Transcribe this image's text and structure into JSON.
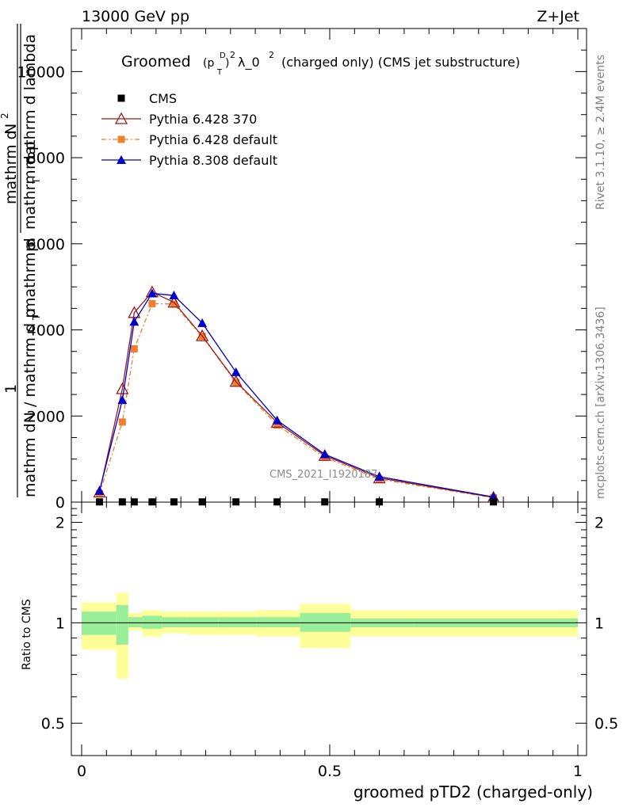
{
  "header": {
    "left": "13000 GeV pp",
    "right": "Z+Jet"
  },
  "title": {
    "main": "Groomed",
    "sup_d": "D",
    "sub_t": "T",
    "p": "(p",
    "close": ")",
    "exp2": "2",
    "lambda": "λ_0",
    "exp2b": "2",
    "rest": "(charged only) (CMS jet substructure)"
  },
  "side_labels": {
    "rivet": "Rivet 3.1.10, ≥ 2.4M events",
    "mcplots": "mcplots.cern.ch [arXiv:1306.3436]",
    "watermark": "CMS_2021_I1920187"
  },
  "ylabel_main": {
    "numerator_1": "mathrm d",
    "numerator_2": "N",
    "numerator_sup": "2",
    "denominator_a": "mathrm d p",
    "denominator_a_sub": "T",
    "denominator_b": "mathrm d lambda",
    "prefix_one": "1",
    "prefix_text": "mathrm dN / mathrm d p",
    "prefix_sub": "T",
    "prefix_tail": "mathrm d",
    "prefix_tail2": "p",
    "prefix_tail2_sub": "T"
  },
  "ratio_ylabel": "Ratio to CMS",
  "xlabel": "groomed pTD2 (charged-only)",
  "chart_data": [
    {
      "type": "line",
      "xlim": [
        0,
        1
      ],
      "ylim": [
        0,
        11000
      ],
      "xticks": [
        0,
        0.5,
        1
      ],
      "xtick_labels": [
        "0",
        "0.5",
        "1"
      ],
      "yticks": [
        0,
        2000,
        4000,
        6000,
        8000,
        10000
      ],
      "ytick_labels": [
        "0",
        "2000",
        "4000",
        "6000",
        "8000",
        "10000"
      ],
      "legend_position": "top-left",
      "series": [
        {
          "name": "CMS",
          "color": "#000000",
          "marker": "square",
          "x": [
            0.036,
            0.082,
            0.106,
            0.142,
            0.186,
            0.243,
            0.311,
            0.394,
            0.49,
            0.6,
            0.83
          ],
          "y": [
            5,
            5,
            5,
            5,
            5,
            5,
            5,
            5,
            5,
            5,
            5
          ]
        },
        {
          "name": "Pythia 6.428 370",
          "color": "#9a1a1a",
          "marker": "open-triangle",
          "x": [
            0.036,
            0.082,
            0.106,
            0.142,
            0.186,
            0.243,
            0.311,
            0.394,
            0.49,
            0.6,
            0.83
          ],
          "y": [
            230,
            2630,
            4400,
            4880,
            4640,
            3860,
            2800,
            1850,
            1080,
            560,
            110
          ]
        },
        {
          "name": "Pythia 6.428 default",
          "color": "#f08030",
          "marker": "square",
          "x": [
            0.036,
            0.082,
            0.106,
            0.142,
            0.186,
            0.243,
            0.311,
            0.394,
            0.49,
            0.6,
            0.83
          ],
          "y": [
            200,
            1860,
            3560,
            4610,
            4600,
            3850,
            2780,
            1790,
            1040,
            530,
            100
          ]
        },
        {
          "name": "Pythia 8.308 default",
          "color": "#0000cc",
          "marker": "triangle",
          "x": [
            0.036,
            0.082,
            0.106,
            0.142,
            0.186,
            0.243,
            0.311,
            0.394,
            0.49,
            0.6,
            0.83
          ],
          "y": [
            260,
            2370,
            4190,
            4850,
            4800,
            4160,
            3020,
            1900,
            1110,
            590,
            120
          ]
        }
      ]
    },
    {
      "type": "area",
      "ylabel": "Ratio to CMS",
      "xlim": [
        0,
        1
      ],
      "ylim": [
        0.4,
        2.3
      ],
      "yticks": [
        0.5,
        1,
        2
      ],
      "ytick_labels": [
        "0.5",
        "1",
        "2"
      ],
      "xticks": [
        0,
        0.5,
        1
      ],
      "xtick_labels": [
        "0",
        "0.5",
        "1"
      ],
      "reference_line": 1,
      "bin_edges": [
        0.0,
        0.07,
        0.094,
        0.122,
        0.162,
        0.214,
        0.276,
        0.352,
        0.44,
        0.542,
        0.67,
        1.0
      ],
      "bins_note": "ratio band drawn from x = 0.0 for bin edges at 0.0, then bands listed below",
      "bands": {
        "stat_color": "#99ee99",
        "total_color": "#ffff99",
        "inner_lo": [
          0.92,
          0.86,
          0.97,
          0.96,
          0.97,
          0.97,
          0.97,
          0.97,
          0.94,
          0.97,
          0.97
        ],
        "inner_hi": [
          1.08,
          1.13,
          1.04,
          1.05,
          1.04,
          1.04,
          1.04,
          1.04,
          1.07,
          1.03,
          1.03
        ],
        "outer_lo": [
          0.83,
          0.68,
          0.95,
          0.91,
          0.93,
          0.92,
          0.92,
          0.91,
          0.84,
          0.91,
          0.91
        ],
        "outer_hi": [
          1.15,
          1.23,
          1.07,
          1.09,
          1.08,
          1.08,
          1.08,
          1.09,
          1.14,
          1.09,
          1.09
        ]
      }
    }
  ]
}
